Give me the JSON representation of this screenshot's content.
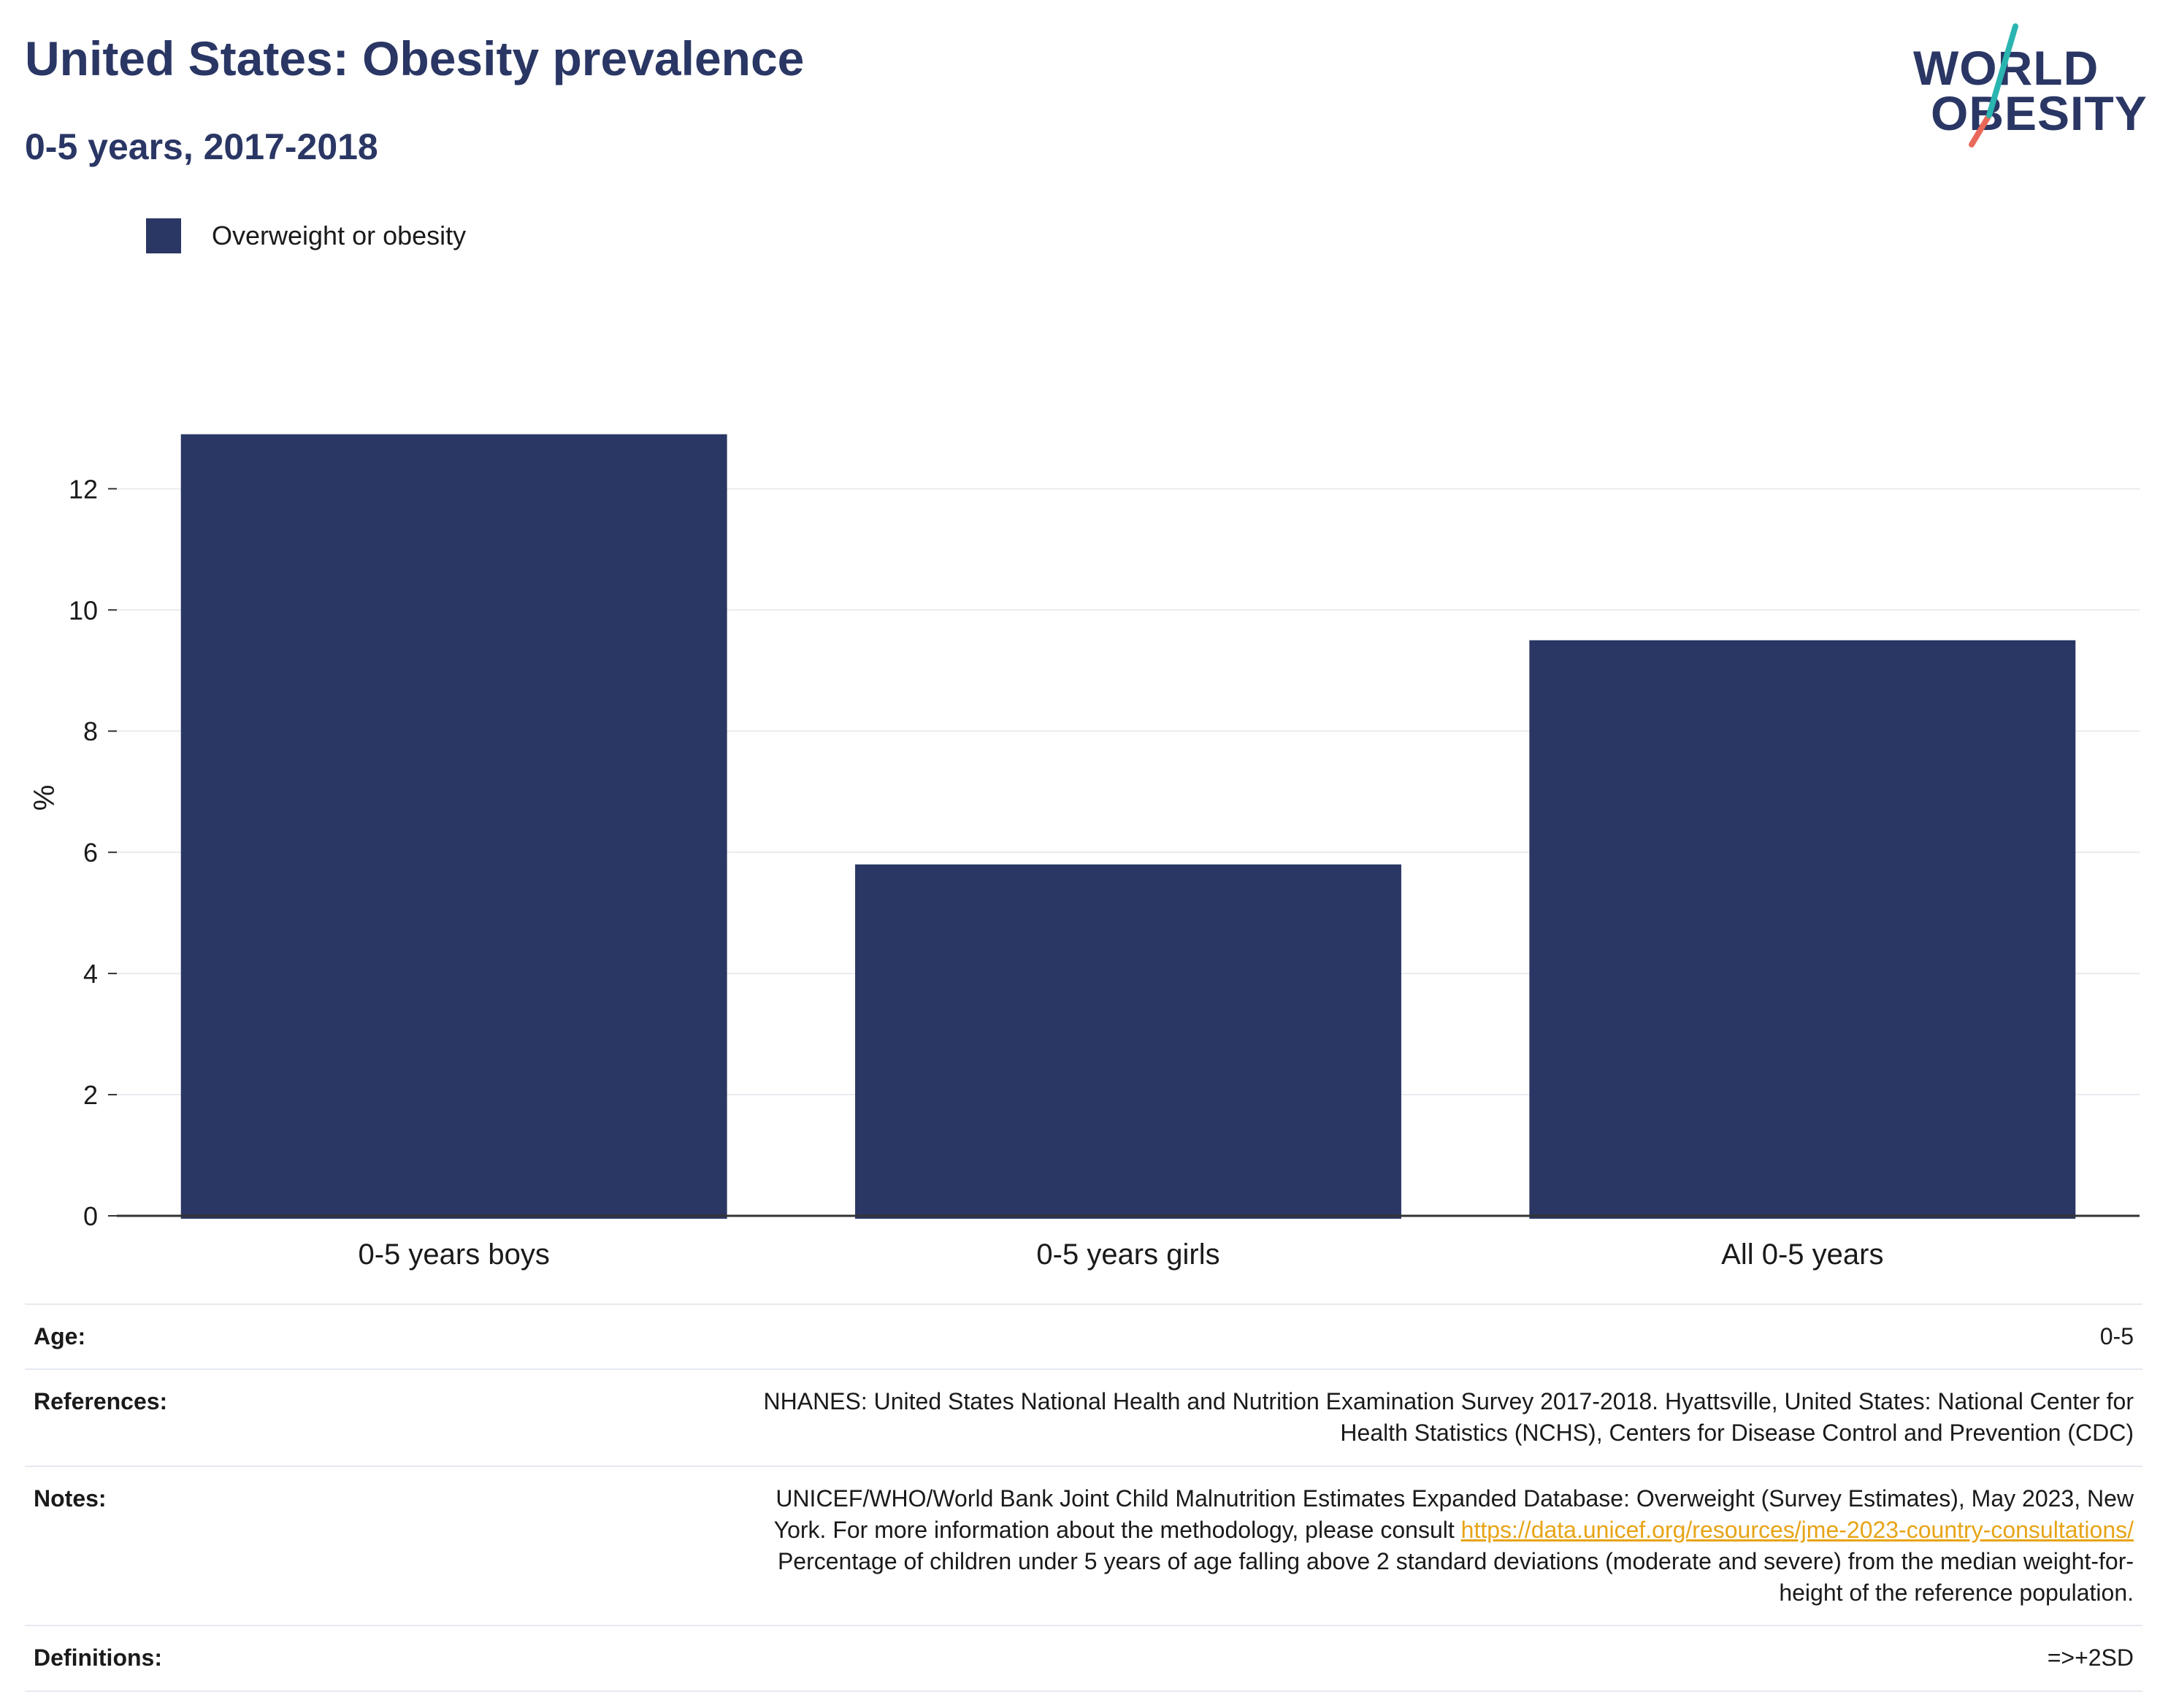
{
  "title": "United States: Obesity prevalence",
  "subtitle": "0-5 years, 2017-2018",
  "logo": {
    "line1": "WORLD",
    "line2": "OBESITY"
  },
  "colors": {
    "bar": "#2a3663",
    "accent_teal": "#2bb5b0",
    "accent_coral": "#e8685a",
    "link": "#e8a417"
  },
  "legend": {
    "label": "Overweight or obesity",
    "placement": "top-left"
  },
  "chart_data": {
    "type": "bar",
    "categories": [
      "0-5 years boys",
      "0-5 years girls",
      "All 0-5 years"
    ],
    "series": [
      {
        "name": "Overweight or obesity",
        "values": [
          12.9,
          5.8,
          9.5
        ]
      }
    ],
    "ylabel": "%",
    "xlabel": "",
    "ylim": [
      0,
      13.8
    ],
    "yticks": [
      0,
      2,
      4,
      6,
      8,
      10,
      12
    ],
    "grid": true
  },
  "meta": {
    "age": {
      "key": "Age:",
      "value": "0-5"
    },
    "references": {
      "key": "References:",
      "line1": "NHANES: United States National Health and Nutrition Examination Survey 2017-2018. Hyattsville, United States: National Center for",
      "line2": "Health Statistics (NCHS), Centers for Disease Control and Prevention (CDC)"
    },
    "notes": {
      "key": "Notes:",
      "line1": "UNICEF/WHO/World Bank Joint Child Malnutrition Estimates Expanded Database: Overweight (Survey Estimates), May 2023, New",
      "line2_prefix": "York. For more information about the methodology, please consult ",
      "link": "https://data.unicef.org/resources/jme-2023-country-consultations/",
      "line3": "Percentage of children under 5 years of age falling above 2 standard deviations (moderate and severe) from the median weight-for-",
      "line4": "height of the reference population."
    },
    "definitions": {
      "key": "Definitions:",
      "value": "=>+2SD"
    }
  }
}
